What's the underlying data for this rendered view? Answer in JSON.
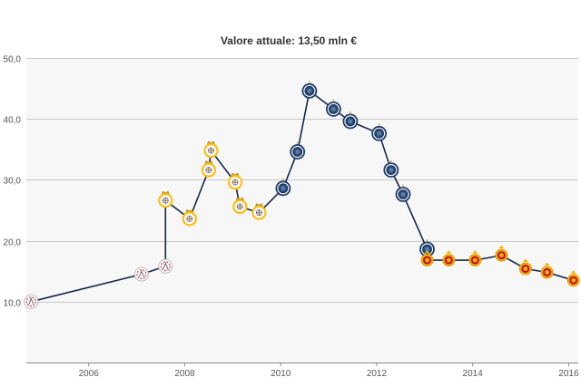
{
  "chart_data": {
    "type": "line",
    "title": "Valore attuale: 13,50 mln €",
    "xlabel": "",
    "ylabel": "",
    "xlim": [
      2004.7,
      2016.2
    ],
    "ylim": [
      0,
      50
    ],
    "x_ticks": [
      2006,
      2008,
      2010,
      2012,
      2014,
      2016
    ],
    "x_tick_labels": [
      "2006",
      "2008",
      "2010",
      "2012",
      "2014",
      "2016"
    ],
    "y_ticks": [
      10,
      20,
      30,
      40,
      50
    ],
    "y_tick_labels": [
      "10,0",
      "20,0",
      "30,0",
      "40,0",
      "50,0"
    ],
    "grid": true,
    "colors": {
      "line": "#14284b",
      "grid": "#c8c8c8",
      "plot_bg": "#f7f7f7",
      "club_ajax": "#c8102e",
      "club_real_madrid": "#febe10",
      "club_inter": "#1d3a6e",
      "club_galatasaray": "#c8102e"
    },
    "series": [
      {
        "points": [
          {
            "x": 2004.8,
            "y": 10.0,
            "club_icon": "ajax-crest-icon"
          },
          {
            "x": 2007.1,
            "y": 14.5,
            "club_icon": "ajax-crest-icon"
          },
          {
            "x": 2007.6,
            "y": 15.8,
            "club_icon": "ajax-crest-icon"
          },
          {
            "x": 2007.6,
            "y": 26.6,
            "club_icon": "real-madrid-crest-icon"
          },
          {
            "x": 2008.1,
            "y": 23.6,
            "club_icon": "real-madrid-crest-icon"
          },
          {
            "x": 2008.5,
            "y": 31.6,
            "club_icon": "real-madrid-crest-icon"
          },
          {
            "x": 2008.55,
            "y": 34.8,
            "club_icon": "real-madrid-crest-icon"
          },
          {
            "x": 2009.05,
            "y": 29.6,
            "club_icon": "real-madrid-crest-icon"
          },
          {
            "x": 2009.15,
            "y": 25.6,
            "club_icon": "real-madrid-crest-icon"
          },
          {
            "x": 2009.55,
            "y": 24.6,
            "club_icon": "real-madrid-crest-icon"
          },
          {
            "x": 2010.05,
            "y": 28.6,
            "club_icon": "inter-crest-icon"
          },
          {
            "x": 2010.35,
            "y": 34.6,
            "club_icon": "inter-crest-icon"
          },
          {
            "x": 2010.6,
            "y": 44.6,
            "club_icon": "inter-crest-icon"
          },
          {
            "x": 2011.1,
            "y": 41.6,
            "club_icon": "inter-crest-icon"
          },
          {
            "x": 2011.45,
            "y": 39.6,
            "club_icon": "inter-crest-icon"
          },
          {
            "x": 2012.05,
            "y": 37.6,
            "club_icon": "inter-crest-icon"
          },
          {
            "x": 2012.3,
            "y": 31.6,
            "club_icon": "inter-crest-icon"
          },
          {
            "x": 2012.55,
            "y": 27.6,
            "club_icon": "inter-crest-icon"
          },
          {
            "x": 2013.05,
            "y": 18.6,
            "club_icon": "inter-crest-icon"
          },
          {
            "x": 2013.05,
            "y": 16.8,
            "club_icon": "galatasaray-crest-icon"
          },
          {
            "x": 2013.5,
            "y": 16.8,
            "club_icon": "galatasaray-crest-icon"
          },
          {
            "x": 2014.05,
            "y": 16.8,
            "club_icon": "galatasaray-crest-icon"
          },
          {
            "x": 2014.6,
            "y": 17.6,
            "club_icon": "galatasaray-crest-icon"
          },
          {
            "x": 2015.1,
            "y": 15.4,
            "club_icon": "galatasaray-crest-icon"
          },
          {
            "x": 2015.55,
            "y": 14.8,
            "club_icon": "galatasaray-crest-icon"
          },
          {
            "x": 2016.1,
            "y": 13.5,
            "club_icon": "galatasaray-crest-icon"
          }
        ]
      }
    ]
  }
}
